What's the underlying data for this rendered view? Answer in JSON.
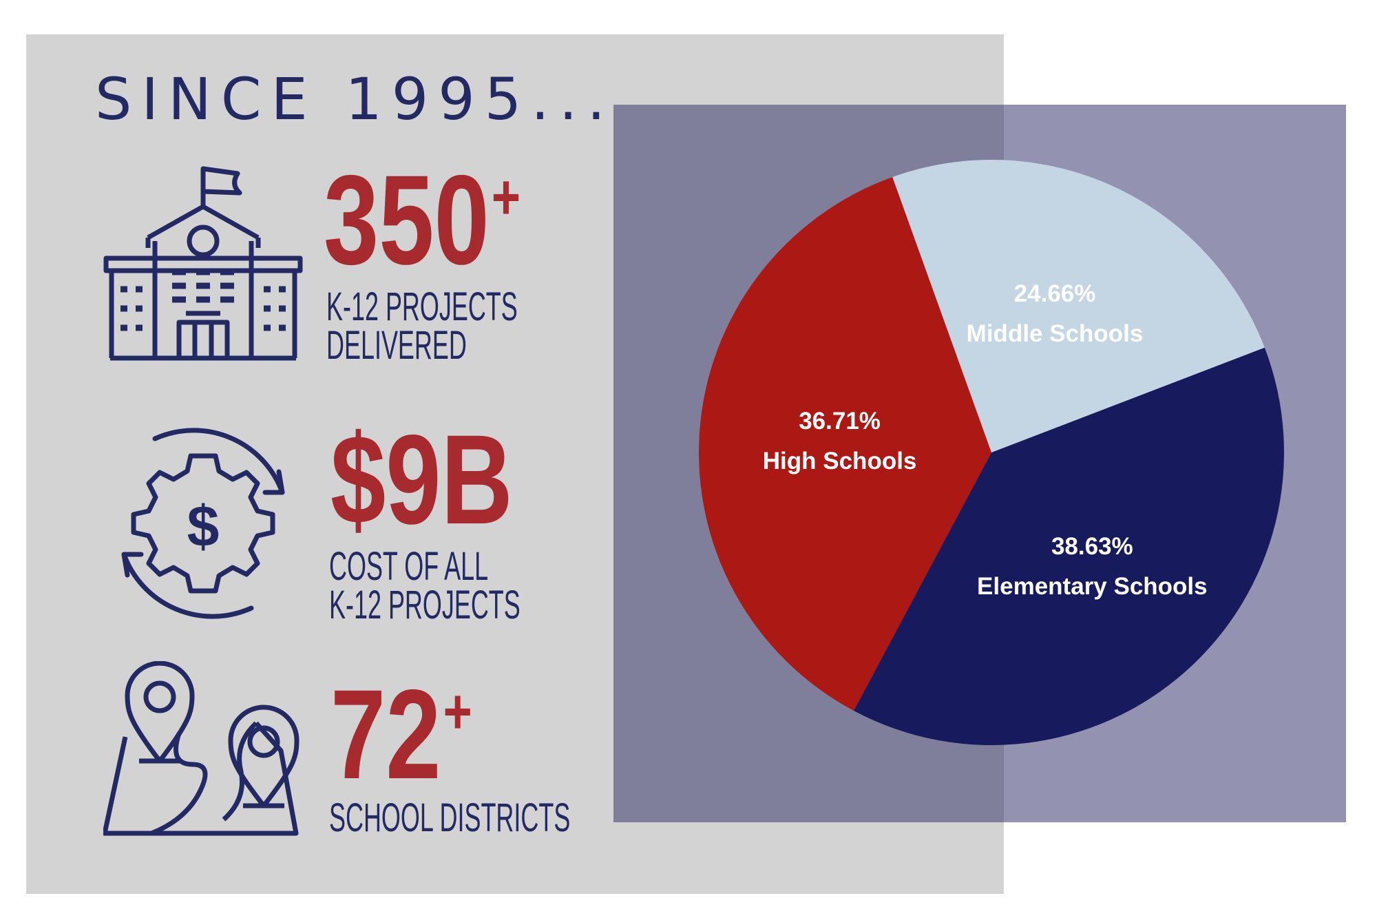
{
  "heading": "SINCE 1995...",
  "stats": [
    {
      "value": "350",
      "suffix": "+",
      "line1": "K-12 PROJECTS",
      "line2": "DELIVERED",
      "icon": "school-building-icon"
    },
    {
      "value": "$9B",
      "suffix": "",
      "line1": "COST OF ALL",
      "line2": "K-12 PROJECTS",
      "icon": "dollar-gear-cycle-icon"
    },
    {
      "value": "72",
      "suffix": "+",
      "line1": "SCHOOL DISTRICTS",
      "line2": "",
      "icon": "map-pins-icon"
    }
  ],
  "colors": {
    "navy": "#181a5e",
    "red": "#ac1813",
    "light_blue": "#c4d6e4",
    "panel_gray": "#d3d3d4",
    "accent_red": "#a62a2e",
    "text_navy": "#232a63"
  },
  "chart_data": {
    "type": "pie",
    "slices": [
      {
        "label": "Elementary Schools",
        "value": 38.63,
        "display": "38.63%",
        "color": "#181a5e"
      },
      {
        "label": "High Schools",
        "value": 36.71,
        "display": "36.71%",
        "color": "#ac1813"
      },
      {
        "label": "Middle Schools",
        "value": 24.66,
        "display": "24.66%",
        "color": "#c4d6e4"
      }
    ],
    "start_angle_deg": -21
  }
}
